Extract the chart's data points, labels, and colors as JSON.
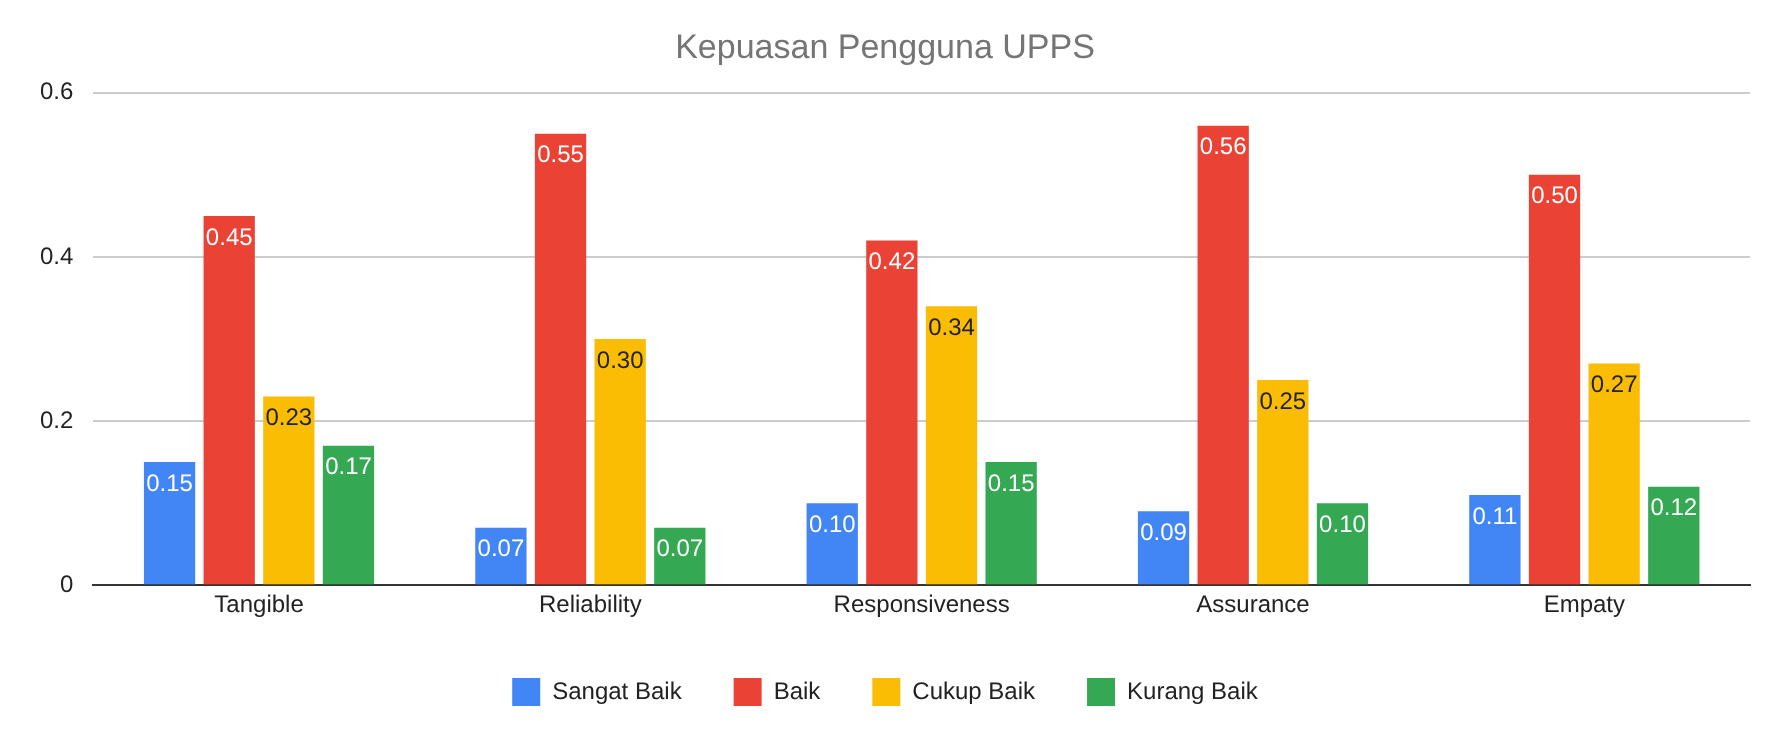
{
  "chart_data": {
    "type": "bar",
    "title": "Kepuasan Pengguna UPPS",
    "categories": [
      "Tangible",
      "Reliability",
      "Responsiveness",
      "Assurance",
      "Empaty"
    ],
    "series": [
      {
        "name": "Sangat Baik",
        "color": "#4285f4",
        "values": [
          0.15,
          0.07,
          0.1,
          0.09,
          0.11
        ],
        "value_labels": [
          "0.15",
          "0.07",
          "0.10",
          "0.09",
          "0.11"
        ]
      },
      {
        "name": "Baik",
        "color": "#ea4335",
        "values": [
          0.45,
          0.55,
          0.42,
          0.56,
          0.5
        ],
        "value_labels": [
          "0.45",
          "0.55",
          "0.42",
          "0.56",
          "0.50"
        ]
      },
      {
        "name": "Cukup Baik",
        "color": "#fbbc04",
        "values": [
          0.23,
          0.3,
          0.34,
          0.25,
          0.27
        ],
        "value_labels": [
          "0.23",
          "0.30",
          "0.34",
          "0.25",
          "0.27"
        ]
      },
      {
        "name": "Kurang Baik",
        "color": "#34a853",
        "values": [
          0.17,
          0.07,
          0.15,
          0.1,
          0.12
        ],
        "value_labels": [
          "0.17",
          "0.07",
          "0.15",
          "0.10",
          "0.12"
        ]
      }
    ],
    "ylim": [
      0,
      0.6
    ],
    "yticks": [
      0,
      0.2,
      0.4,
      0.6
    ],
    "grid": "y",
    "legend": "bottom"
  }
}
